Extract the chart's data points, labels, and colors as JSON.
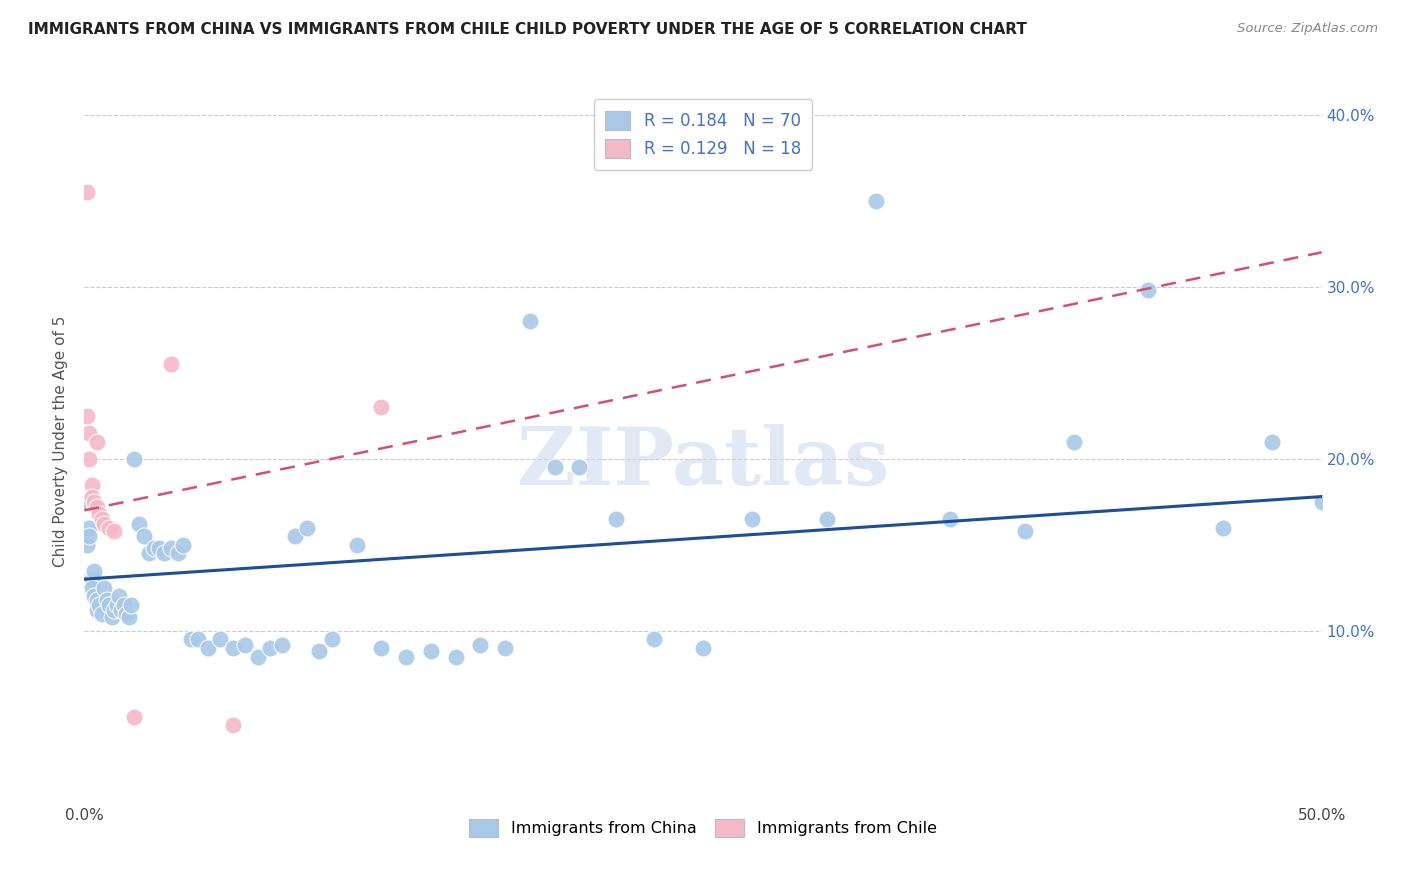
{
  "title": "IMMIGRANTS FROM CHINA VS IMMIGRANTS FROM CHILE CHILD POVERTY UNDER THE AGE OF 5 CORRELATION CHART",
  "source": "Source: ZipAtlas.com",
  "ylabel": "Child Poverty Under the Age of 5",
  "xlim": [
    0.0,
    0.5
  ],
  "ylim": [
    0.0,
    0.42
  ],
  "xticks": [
    0.0,
    0.1,
    0.2,
    0.3,
    0.4,
    0.5
  ],
  "xticklabels": [
    "0.0%",
    "",
    "",
    "",
    "",
    "50.0%"
  ],
  "yticks": [
    0.1,
    0.2,
    0.3,
    0.4
  ],
  "yticklabels": [
    "10.0%",
    "20.0%",
    "30.0%",
    "40.0%"
  ],
  "legend_r_china": "0.184",
  "legend_n_china": "70",
  "legend_r_chile": "0.129",
  "legend_n_chile": "18",
  "china_color": "#a8c8e8",
  "chile_color": "#f5b8c8",
  "china_line_color": "#1f4e99",
  "chile_line_color": "#d45070",
  "watermark": "ZIPatlas",
  "china_scatter_x": [
    0.001,
    0.001,
    0.002,
    0.002,
    0.003,
    0.003,
    0.004,
    0.004,
    0.005,
    0.005,
    0.006,
    0.007,
    0.008,
    0.009,
    0.01,
    0.011,
    0.012,
    0.013,
    0.014,
    0.015,
    0.016,
    0.017,
    0.018,
    0.019,
    0.02,
    0.022,
    0.024,
    0.026,
    0.028,
    0.03,
    0.032,
    0.035,
    0.038,
    0.04,
    0.043,
    0.046,
    0.05,
    0.055,
    0.06,
    0.065,
    0.07,
    0.075,
    0.08,
    0.085,
    0.09,
    0.095,
    0.1,
    0.11,
    0.12,
    0.13,
    0.14,
    0.15,
    0.16,
    0.17,
    0.18,
    0.19,
    0.2,
    0.215,
    0.23,
    0.25,
    0.27,
    0.3,
    0.32,
    0.35,
    0.38,
    0.4,
    0.43,
    0.46,
    0.48,
    0.5
  ],
  "china_scatter_y": [
    0.175,
    0.15,
    0.16,
    0.155,
    0.13,
    0.125,
    0.12,
    0.135,
    0.118,
    0.112,
    0.115,
    0.11,
    0.125,
    0.118,
    0.115,
    0.108,
    0.112,
    0.115,
    0.12,
    0.112,
    0.115,
    0.11,
    0.108,
    0.115,
    0.2,
    0.162,
    0.155,
    0.145,
    0.148,
    0.148,
    0.145,
    0.148,
    0.145,
    0.15,
    0.095,
    0.095,
    0.09,
    0.095,
    0.09,
    0.092,
    0.085,
    0.09,
    0.092,
    0.155,
    0.16,
    0.088,
    0.095,
    0.15,
    0.09,
    0.085,
    0.088,
    0.085,
    0.092,
    0.09,
    0.28,
    0.195,
    0.195,
    0.165,
    0.095,
    0.09,
    0.165,
    0.165,
    0.35,
    0.165,
    0.158,
    0.21,
    0.298,
    0.16,
    0.21,
    0.175
  ],
  "chile_scatter_x": [
    0.001,
    0.001,
    0.002,
    0.002,
    0.003,
    0.003,
    0.004,
    0.005,
    0.005,
    0.006,
    0.007,
    0.008,
    0.01,
    0.012,
    0.02,
    0.035,
    0.06,
    0.12
  ],
  "chile_scatter_y": [
    0.355,
    0.225,
    0.215,
    0.2,
    0.185,
    0.178,
    0.175,
    0.21,
    0.172,
    0.168,
    0.165,
    0.162,
    0.16,
    0.158,
    0.05,
    0.255,
    0.045,
    0.23
  ],
  "china_trendline_x0": 0.0,
  "china_trendline_x1": 0.5,
  "china_trendline_y0": 0.13,
  "china_trendline_y1": 0.178,
  "chile_trendline_x0": 0.0,
  "chile_trendline_x1": 0.5,
  "chile_trendline_y0": 0.17,
  "chile_trendline_y1": 0.32
}
